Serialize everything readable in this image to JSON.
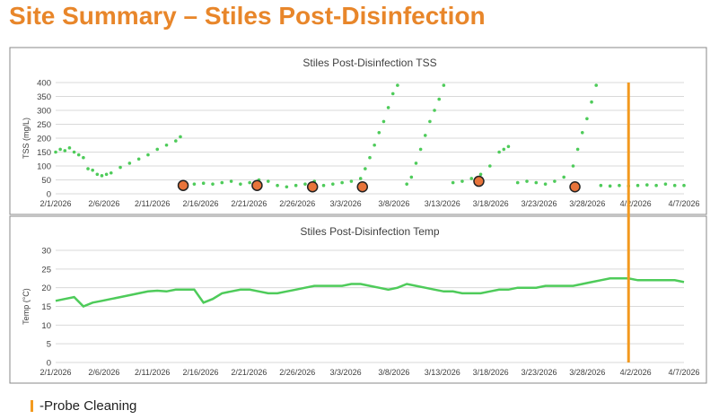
{
  "slide_title": "Site Summary – Stiles Post-Disinfection",
  "legend": {
    "label": "-Probe Cleaning",
    "color": "#f39a1f"
  },
  "colors": {
    "series": "#4ecb5a",
    "cleaning_dot": "#e8743b",
    "cleaning_line": "#f39a1f",
    "grid": "#d9d9d9",
    "text": "#404040"
  },
  "chart_data": [
    {
      "type": "scatter",
      "title": "Stiles Post-Disinfection TSS",
      "ylabel": "TSS (mg/L)",
      "xlabel": "",
      "ylim": [
        0,
        400
      ],
      "yticks": [
        0,
        50,
        100,
        150,
        200,
        250,
        300,
        350,
        400
      ],
      "x_tick_labels": [
        "2/1/2026",
        "2/6/2026",
        "2/11/2026",
        "2/16/2026",
        "2/21/2026",
        "2/26/2026",
        "3/3/2026",
        "3/8/2026",
        "3/13/2026",
        "3/18/2026",
        "3/23/2026",
        "3/28/2026",
        "4/2/2026",
        "4/7/2026"
      ],
      "x_range_days": [
        0,
        68
      ],
      "series": [
        {
          "name": "TSS",
          "values": [
            [
              0,
              150
            ],
            [
              0.5,
              160
            ],
            [
              1,
              155
            ],
            [
              1.5,
              165
            ],
            [
              2,
              150
            ],
            [
              2.5,
              140
            ],
            [
              3,
              130
            ],
            [
              3.5,
              90
            ],
            [
              4,
              85
            ],
            [
              4.5,
              70
            ],
            [
              5,
              65
            ],
            [
              5.5,
              70
            ],
            [
              6,
              75
            ],
            [
              7,
              95
            ],
            [
              8,
              110
            ],
            [
              9,
              125
            ],
            [
              10,
              140
            ],
            [
              11,
              160
            ],
            [
              12,
              175
            ],
            [
              13,
              190
            ],
            [
              13.5,
              205
            ],
            [
              14,
              35
            ],
            [
              15,
              35
            ],
            [
              16,
              38
            ],
            [
              17,
              35
            ],
            [
              18,
              40
            ],
            [
              19,
              45
            ],
            [
              20,
              35
            ],
            [
              21,
              40
            ],
            [
              22,
              50
            ],
            [
              23,
              45
            ],
            [
              24,
              30
            ],
            [
              25,
              25
            ],
            [
              26,
              30
            ],
            [
              27,
              35
            ],
            [
              28,
              45
            ],
            [
              29,
              30
            ],
            [
              30,
              35
            ],
            [
              31,
              40
            ],
            [
              32,
              45
            ],
            [
              33,
              55
            ],
            [
              33.5,
              90
            ],
            [
              34,
              130
            ],
            [
              34.5,
              175
            ],
            [
              35,
              220
            ],
            [
              35.5,
              260
            ],
            [
              36,
              310
            ],
            [
              36.5,
              360
            ],
            [
              37,
              390
            ],
            [
              38,
              35
            ],
            [
              38.5,
              60
            ],
            [
              39,
              110
            ],
            [
              39.5,
              160
            ],
            [
              40,
              210
            ],
            [
              40.5,
              260
            ],
            [
              41,
              300
            ],
            [
              41.5,
              340
            ],
            [
              42,
              390
            ],
            [
              43,
              40
            ],
            [
              44,
              45
            ],
            [
              45,
              55
            ],
            [
              46,
              70
            ],
            [
              47,
              100
            ],
            [
              48,
              150
            ],
            [
              48.5,
              160
            ],
            [
              49,
              170
            ],
            [
              50,
              40
            ],
            [
              51,
              45
            ],
            [
              52,
              40
            ],
            [
              53,
              35
            ],
            [
              54,
              45
            ],
            [
              55,
              60
            ],
            [
              56,
              100
            ],
            [
              56.5,
              160
            ],
            [
              57,
              220
            ],
            [
              57.5,
              270
            ],
            [
              58,
              330
            ],
            [
              58.5,
              390
            ],
            [
              59,
              30
            ],
            [
              60,
              28
            ],
            [
              61,
              30
            ],
            [
              62,
              28
            ],
            [
              63,
              30
            ],
            [
              64,
              32
            ],
            [
              65,
              30
            ],
            [
              66,
              35
            ],
            [
              67,
              30
            ],
            [
              68,
              30
            ]
          ]
        }
      ],
      "cleaning_events_days": [
        13.8,
        21.8,
        27.8,
        33.2,
        45.8,
        56.2
      ],
      "cleaning_event_values": [
        30,
        30,
        25,
        25,
        45,
        25
      ]
    },
    {
      "type": "line",
      "title": "Stiles Post-Disinfection Temp",
      "ylabel": "Temp (°C)",
      "xlabel": "",
      "ylim": [
        0,
        30
      ],
      "yticks": [
        0,
        5,
        10,
        15,
        20,
        25,
        30
      ],
      "x_tick_labels": [
        "2/1/2026",
        "2/6/2026",
        "2/11/2026",
        "2/16/2026",
        "2/21/2026",
        "2/26/2026",
        "3/3/2026",
        "3/8/2026",
        "3/13/2026",
        "3/18/2026",
        "3/23/2026",
        "3/28/2026",
        "4/2/2026",
        "4/7/2026"
      ],
      "x_range_days": [
        0,
        68
      ],
      "series": [
        {
          "name": "Temp",
          "values": [
            [
              0,
              16.5
            ],
            [
              1,
              17
            ],
            [
              2,
              17.5
            ],
            [
              3,
              15
            ],
            [
              4,
              16
            ],
            [
              5,
              16.5
            ],
            [
              6,
              17
            ],
            [
              7,
              17.5
            ],
            [
              8,
              18
            ],
            [
              9,
              18.5
            ],
            [
              10,
              19
            ],
            [
              11,
              19.2
            ],
            [
              12,
              19
            ],
            [
              13,
              19.5
            ],
            [
              14,
              19.5
            ],
            [
              15,
              19.5
            ],
            [
              16,
              16
            ],
            [
              17,
              17
            ],
            [
              18,
              18.5
            ],
            [
              19,
              19
            ],
            [
              20,
              19.5
            ],
            [
              21,
              19.5
            ],
            [
              22,
              19
            ],
            [
              23,
              18.5
            ],
            [
              24,
              18.5
            ],
            [
              25,
              19
            ],
            [
              26,
              19.5
            ],
            [
              27,
              20
            ],
            [
              28,
              20.5
            ],
            [
              29,
              20.5
            ],
            [
              30,
              20.5
            ],
            [
              31,
              20.5
            ],
            [
              32,
              21
            ],
            [
              33,
              21
            ],
            [
              34,
              20.5
            ],
            [
              35,
              20
            ],
            [
              36,
              19.5
            ],
            [
              37,
              20
            ],
            [
              38,
              21
            ],
            [
              39,
              20.5
            ],
            [
              40,
              20
            ],
            [
              41,
              19.5
            ],
            [
              42,
              19
            ],
            [
              43,
              19
            ],
            [
              44,
              18.5
            ],
            [
              45,
              18.5
            ],
            [
              46,
              18.5
            ],
            [
              47,
              19
            ],
            [
              48,
              19.5
            ],
            [
              49,
              19.5
            ],
            [
              50,
              20
            ],
            [
              51,
              20
            ],
            [
              52,
              20
            ],
            [
              53,
              20.5
            ],
            [
              54,
              20.5
            ],
            [
              55,
              20.5
            ],
            [
              56,
              20.5
            ],
            [
              57,
              21
            ],
            [
              58,
              21.5
            ],
            [
              59,
              22
            ],
            [
              60,
              22.5
            ],
            [
              61,
              22.5
            ],
            [
              62,
              22.5
            ],
            [
              63,
              22
            ],
            [
              64,
              22
            ],
            [
              65,
              22
            ],
            [
              66,
              22
            ],
            [
              67,
              22
            ],
            [
              68,
              21.5
            ]
          ]
        }
      ],
      "cleaning_events_days": [
        62
      ]
    }
  ]
}
